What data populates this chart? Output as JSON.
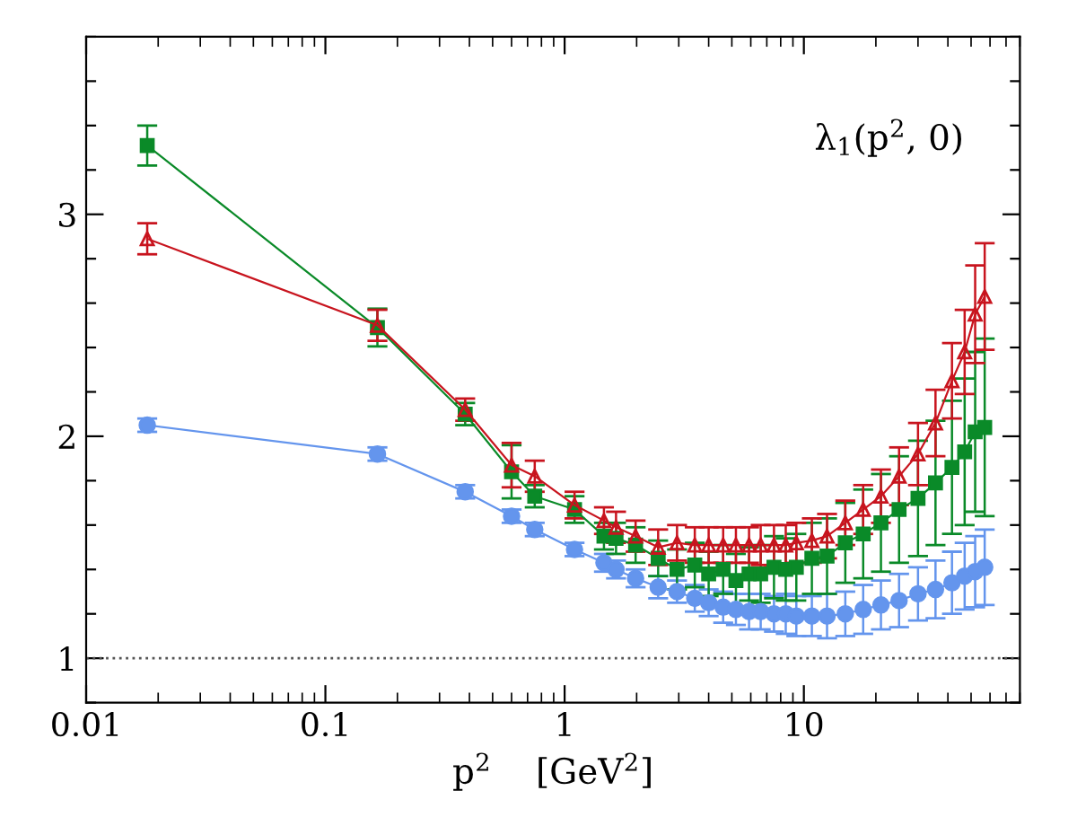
{
  "chart_data": {
    "type": "line",
    "xlabel": "p$^{2}$    [GeV$^{2}$]",
    "annotations": [
      "λ$_{1}$(p$^{2}$, 0)"
    ],
    "log": "x",
    "xlim": [
      0.01,
      80
    ],
    "xticks": [
      0.01,
      0.1,
      1,
      10
    ],
    "ylim": [
      0.8,
      3.8
    ],
    "yticks": [
      {
        "value": 0.8,
        "label": null
      },
      1,
      {
        "value": 1.2,
        "label": null
      },
      {
        "value": 1.4,
        "label": null
      },
      {
        "value": 1.6,
        "label": null
      },
      {
        "value": 1.8,
        "label": null
      },
      2,
      {
        "value": 2.2,
        "label": null
      },
      {
        "value": 2.4,
        "label": null
      },
      {
        "value": 2.6,
        "label": null
      },
      {
        "value": 2.8,
        "label": null
      },
      3,
      {
        "value": 3.2,
        "label": null
      },
      {
        "value": 3.4,
        "label": null
      },
      {
        "value": 3.6,
        "label": null
      },
      {
        "value": 3.8,
        "label": null
      }
    ],
    "x": [
      0.018,
      0.165,
      0.384,
      0.6,
      0.75,
      1.1,
      1.46,
      1.64,
      1.98,
      2.46,
      2.95,
      3.5,
      4.0,
      4.6,
      5.2,
      5.9,
      6.6,
      7.5,
      8.4,
      9.3,
      10.8,
      12.5,
      14.9,
      17.7,
      21,
      25,
      30,
      35.5,
      41.6,
      47,
      52,
      57
    ],
    "ref_lines": [
      {
        "axis": "y",
        "value": 1,
        "color": "#555555",
        "line_style": "dotted"
      }
    ],
    "grid": false,
    "legend": false,
    "series": [
      {
        "color": "#6495ed",
        "marker": "circle",
        "values": [
          2.05,
          1.92,
          1.75,
          1.64,
          1.58,
          1.49,
          1.43,
          1.4,
          1.36,
          1.32,
          1.3,
          1.27,
          1.25,
          1.23,
          1.22,
          1.21,
          1.21,
          1.2,
          1.2,
          1.19,
          1.19,
          1.19,
          1.2,
          1.22,
          1.24,
          1.26,
          1.29,
          1.31,
          1.34,
          1.37,
          1.39,
          1.41
        ],
        "errors": [
          0.03,
          0.03,
          0.03,
          0.03,
          0.03,
          0.03,
          0.04,
          0.04,
          0.04,
          0.05,
          0.05,
          0.06,
          0.06,
          0.07,
          0.07,
          0.08,
          0.08,
          0.08,
          0.09,
          0.09,
          0.09,
          0.1,
          0.1,
          0.11,
          0.11,
          0.12,
          0.12,
          0.13,
          0.14,
          0.15,
          0.16,
          0.17
        ]
      },
      {
        "color": "#0a8a28",
        "marker": "square",
        "values": [
          3.31,
          2.49,
          2.1,
          1.84,
          1.73,
          1.67,
          1.55,
          1.54,
          1.51,
          1.45,
          1.4,
          1.42,
          1.38,
          1.4,
          1.35,
          1.38,
          1.38,
          1.41,
          1.4,
          1.41,
          1.45,
          1.46,
          1.52,
          1.56,
          1.61,
          1.67,
          1.72,
          1.79,
          1.86,
          1.93,
          2.02,
          2.04
        ],
        "errors": [
          0.09,
          0.085,
          0.05,
          0.12,
          0.05,
          0.06,
          0.06,
          0.07,
          0.08,
          0.08,
          0.09,
          0.1,
          0.1,
          0.11,
          0.12,
          0.12,
          0.13,
          0.14,
          0.14,
          0.15,
          0.16,
          0.17,
          0.18,
          0.2,
          0.22,
          0.24,
          0.26,
          0.28,
          0.3,
          0.33,
          0.36,
          0.4
        ]
      },
      {
        "color": "#c8141e",
        "marker": "triangle",
        "values": [
          2.89,
          2.5,
          2.12,
          1.87,
          1.82,
          1.69,
          1.62,
          1.59,
          1.55,
          1.5,
          1.52,
          1.51,
          1.51,
          1.51,
          1.51,
          1.51,
          1.51,
          1.51,
          1.51,
          1.52,
          1.53,
          1.55,
          1.61,
          1.67,
          1.73,
          1.82,
          1.92,
          2.06,
          2.25,
          2.38,
          2.55,
          2.63
        ],
        "errors": [
          0.07,
          0.07,
          0.05,
          0.1,
          0.07,
          0.06,
          0.06,
          0.07,
          0.07,
          0.08,
          0.08,
          0.08,
          0.08,
          0.08,
          0.08,
          0.08,
          0.09,
          0.09,
          0.09,
          0.09,
          0.1,
          0.1,
          0.1,
          0.11,
          0.12,
          0.13,
          0.14,
          0.15,
          0.17,
          0.19,
          0.22,
          0.24
        ]
      }
    ]
  }
}
